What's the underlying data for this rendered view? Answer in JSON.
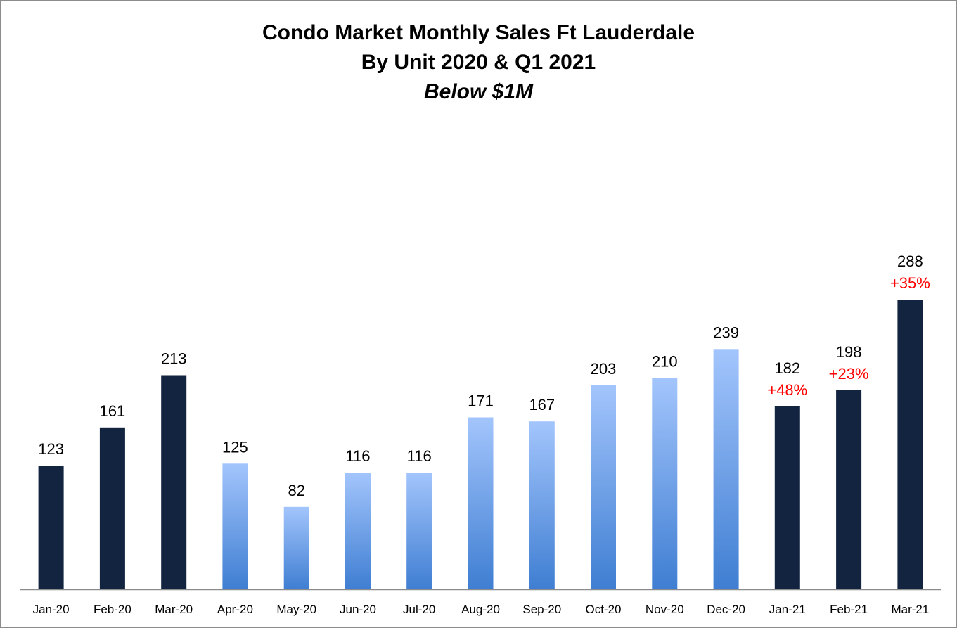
{
  "chart_data": {
    "type": "bar",
    "title": "Condo Market Monthly Sales Ft Lauderdale",
    "subtitle": "By Unit 2020 & Q1 2021",
    "subtitle2": "Below $1M",
    "xlabel": "",
    "ylabel": "",
    "ylim": [
      0,
      320
    ],
    "grid": false,
    "legend": "none",
    "categories": [
      "Jan-20",
      "Feb-20",
      "Mar-20",
      "Apr-20",
      "May-20",
      "Jun-20",
      "Jul-20",
      "Aug-20",
      "Sep-20",
      "Oct-20",
      "Nov-20",
      "Dec-20",
      "Jan-21",
      "Feb-21",
      "Mar-21"
    ],
    "values": [
      123,
      161,
      213,
      125,
      82,
      116,
      116,
      171,
      167,
      203,
      210,
      239,
      182,
      198,
      288
    ],
    "value_labels": [
      "123",
      "161",
      "213",
      "125",
      "82",
      "116",
      "116",
      "171",
      "167",
      "203",
      "210",
      "239",
      "182",
      "198",
      "288"
    ],
    "change_labels": [
      "",
      "",
      "",
      "",
      "",
      "",
      "",
      "",
      "",
      "",
      "",
      "",
      "+48%",
      "+23%",
      "+35%"
    ],
    "bar_styles": [
      "dark",
      "dark",
      "dark",
      "gradient",
      "gradient",
      "gradient",
      "gradient",
      "gradient",
      "gradient",
      "gradient",
      "gradient",
      "gradient",
      "dark",
      "dark",
      "dark"
    ],
    "colors": {
      "dark": "#12243f",
      "gradient_top": "#a3c5fc",
      "gradient_bottom": "#3f7ed2",
      "change_label": "#ff0000",
      "axis": "#8c8c8c"
    }
  }
}
